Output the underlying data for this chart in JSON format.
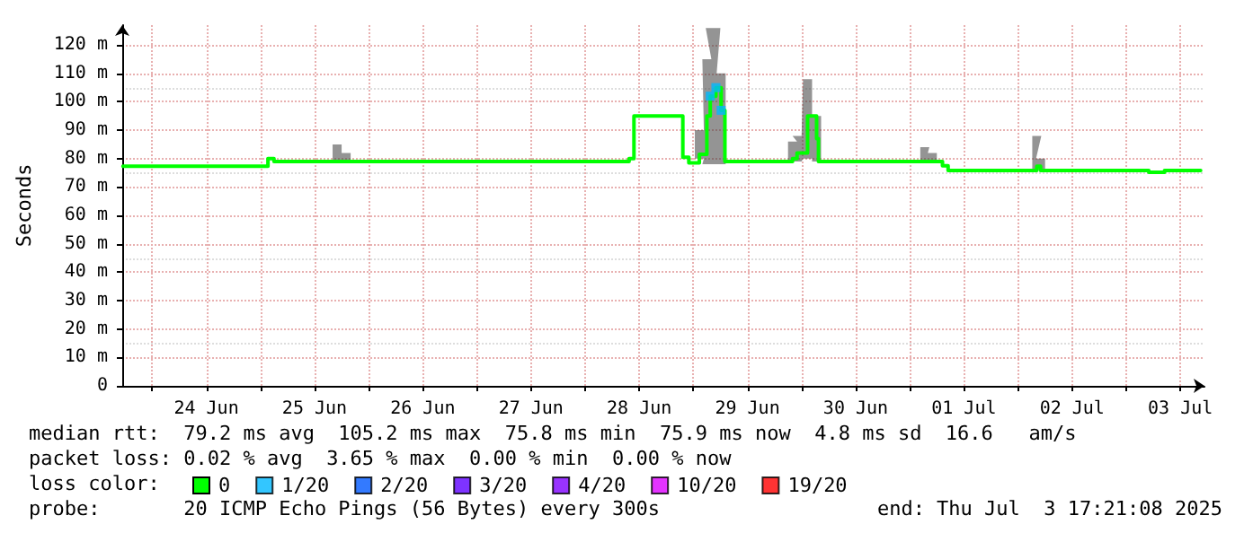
{
  "chart_data": {
    "type": "step",
    "ylabel": "Seconds",
    "legend_title": "loss color:",
    "legend": "bottom left",
    "grid": true,
    "marker": "none",
    "line_style": "solid",
    "xlim": [
      "2025-06-23T17:21",
      "2025-07-03T17:21"
    ],
    "xticks": [
      {
        "value": "2025-06-24T00:00",
        "label": null
      },
      {
        "value": "2025-06-24T12:00",
        "label": "24 Jun"
      },
      {
        "value": "2025-06-25T00:00",
        "label": null
      },
      {
        "value": "2025-06-25T12:00",
        "label": "25 Jun"
      },
      {
        "value": "2025-06-26T00:00",
        "label": null
      },
      {
        "value": "2025-06-26T12:00",
        "label": "26 Jun"
      },
      {
        "value": "2025-06-27T00:00",
        "label": null
      },
      {
        "value": "2025-06-27T12:00",
        "label": "27 Jun"
      },
      {
        "value": "2025-06-28T00:00",
        "label": null
      },
      {
        "value": "2025-06-28T12:00",
        "label": "28 Jun"
      },
      {
        "value": "2025-06-29T00:00",
        "label": null
      },
      {
        "value": "2025-06-29T12:00",
        "label": "29 Jun"
      },
      {
        "value": "2025-06-30T00:00",
        "label": null
      },
      {
        "value": "2025-06-30T12:00",
        "label": "30 Jun"
      },
      {
        "value": "2025-07-01T00:00",
        "label": null
      },
      {
        "value": "2025-07-01T12:00",
        "label": "01 Jul"
      },
      {
        "value": "2025-07-02T00:00",
        "label": null
      },
      {
        "value": "2025-07-02T12:00",
        "label": "02 Jul"
      },
      {
        "value": "2025-07-03T00:00",
        "label": null
      },
      {
        "value": "2025-07-03T12:00",
        "label": "03 Jul"
      }
    ],
    "ylim": [
      0,
      127
    ],
    "yticks": [
      0,
      {
        "value": 10,
        "label": "10 m"
      },
      {
        "value": 20,
        "label": "20 m"
      },
      {
        "value": 30,
        "label": "30 m"
      },
      {
        "value": 40,
        "label": "40 m"
      },
      {
        "value": 50,
        "label": "50 m"
      },
      {
        "value": 60,
        "label": "60 m"
      },
      {
        "value": 70,
        "label": "70 m"
      },
      {
        "value": 80,
        "label": "80 m"
      },
      {
        "value": 90,
        "label": "90 m"
      },
      {
        "value": 100,
        "label": "100 m"
      },
      {
        "value": 110,
        "label": "110 m"
      },
      {
        "value": 120,
        "label": "120 m"
      }
    ],
    "series": [
      {
        "name": "0",
        "color": "#00ff00",
        "x": [
          "2025-06-23T17:30",
          "2025-06-25T01:40",
          "2025-06-25T03:00",
          "2025-06-25T17:00",
          "2025-06-25T19:00",
          "2025-06-28T09:45",
          "2025-06-28T10:50",
          "2025-06-28T21:40",
          "2025-06-28T23:00",
          "2025-06-29T01:20",
          "2025-06-29T03:00",
          "2025-06-29T03:45",
          "2025-06-29T05:00",
          "2025-06-29T06:10",
          "2025-06-29T07:00",
          "2025-06-29T22:00",
          "2025-06-29T23:00",
          "2025-06-30T01:20",
          "2025-06-30T03:20",
          "2025-06-30T03:45",
          "2025-07-01T03:20",
          "2025-07-01T05:00",
          "2025-07-01T07:15",
          "2025-07-01T08:30",
          "2025-07-02T04:10",
          "2025-07-02T05:00",
          "2025-07-03T05:00",
          "2025-07-03T08:30",
          "2025-07-03T16:30"
        ],
        "values": [
          77.3,
          80,
          79,
          79,
          79,
          80,
          95,
          80.5,
          78.5,
          81.5,
          95,
          102,
          105,
          97,
          79,
          80,
          82,
          95,
          87,
          79,
          79,
          79,
          77.5,
          75.8,
          77.3,
          75.8,
          75.2,
          75.8,
          75.8
        ],
        "lower": [
          null,
          null,
          null,
          79,
          79,
          null,
          null,
          null,
          null,
          80,
          78,
          78,
          78,
          78,
          null,
          79,
          79,
          80,
          79,
          null,
          79,
          79,
          null,
          null,
          76,
          76,
          null,
          null,
          null
        ],
        "upper": [
          null,
          null,
          null,
          85,
          82,
          null,
          null,
          null,
          null,
          90,
          115,
          126,
          126,
          110,
          null,
          86,
          88,
          108,
          95,
          null,
          84,
          82,
          null,
          null,
          88,
          80,
          null,
          null,
          null
        ]
      },
      {
        "name": "1/20",
        "color": "#00b8ff",
        "type": "scatter",
        "marker": "square",
        "x": [
          "2025-06-29T03:45",
          "2025-06-29T05:00",
          "2025-06-29T06:10"
        ],
        "values": [
          102,
          105,
          97
        ]
      },
      {
        "name": "2/20",
        "color": "#0059ff",
        "type": "scatter"
      },
      {
        "name": "3/20",
        "color": "#5e00ff",
        "type": "scatter"
      },
      {
        "name": "4/20",
        "color": "#7e00ff",
        "type": "scatter"
      },
      {
        "name": "10/20",
        "color": "#dd00ff",
        "type": "scatter"
      },
      {
        "name": "19/20",
        "color": "#ff0000",
        "type": "scatter"
      }
    ],
    "annotations": [
      "median rtt:  79.2 ms avg  105.2 ms max  75.8 ms min  75.9 ms now  4.8 ms sd  16.6   am/s",
      "packet loss: 0.02 % avg  3.65 % max  0.00 % min  0.00 % now",
      "probe:       20 ICMP Echo Pings (56 Bytes) every 300s",
      "end: Thu Jul  3 17:21:08 2025"
    ]
  }
}
